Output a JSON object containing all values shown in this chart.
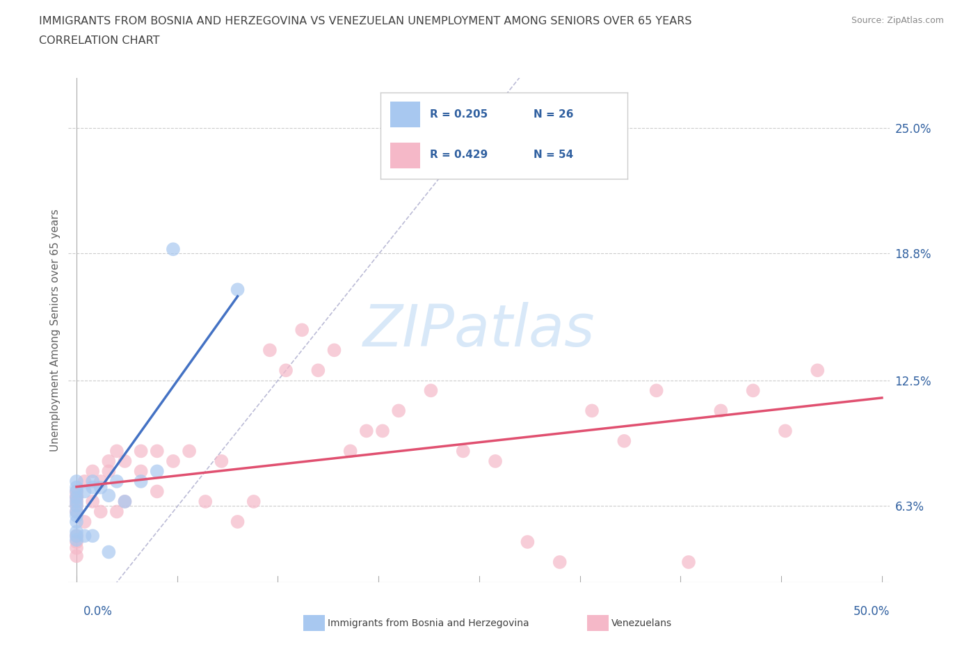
{
  "title_line1": "IMMIGRANTS FROM BOSNIA AND HERZEGOVINA VS VENEZUELAN UNEMPLOYMENT AMONG SENIORS OVER 65 YEARS",
  "title_line2": "CORRELATION CHART",
  "source": "Source: ZipAtlas.com",
  "ylabel": "Unemployment Among Seniors over 65 years",
  "xlim": [
    -0.005,
    0.505
  ],
  "ylim": [
    0.025,
    0.275
  ],
  "y_tick_labels": [
    "6.3%",
    "12.5%",
    "18.8%",
    "25.0%"
  ],
  "y_tick_values": [
    0.063,
    0.125,
    0.188,
    0.25
  ],
  "x_tick_positions": [
    0.0,
    0.0625,
    0.125,
    0.1875,
    0.25,
    0.3125,
    0.375,
    0.4375,
    0.5
  ],
  "bosnia_color": "#a8c8f0",
  "venezuela_color": "#f5b8c8",
  "bosnia_line_color": "#4472c4",
  "venezuela_line_color": "#e05070",
  "diagonal_color": "#aaaacc",
  "watermark_color": "#d8e8f8",
  "legend_rn_color": "#3060a0",
  "bosnia_scatter_x": [
    0.0,
    0.0,
    0.0,
    0.0,
    0.0,
    0.0,
    0.0,
    0.0,
    0.0,
    0.0,
    0.0,
    0.0,
    0.005,
    0.005,
    0.01,
    0.01,
    0.01,
    0.015,
    0.02,
    0.02,
    0.025,
    0.03,
    0.04,
    0.05,
    0.06,
    0.1
  ],
  "bosnia_scatter_y": [
    0.063,
    0.065,
    0.067,
    0.07,
    0.072,
    0.075,
    0.055,
    0.058,
    0.06,
    0.05,
    0.048,
    0.046,
    0.07,
    0.048,
    0.072,
    0.075,
    0.048,
    0.072,
    0.068,
    0.04,
    0.075,
    0.065,
    0.075,
    0.08,
    0.19,
    0.17
  ],
  "venezuela_scatter_x": [
    0.0,
    0.0,
    0.0,
    0.0,
    0.0,
    0.0,
    0.0,
    0.0,
    0.0,
    0.0,
    0.005,
    0.005,
    0.01,
    0.01,
    0.015,
    0.015,
    0.02,
    0.02,
    0.025,
    0.025,
    0.03,
    0.03,
    0.04,
    0.04,
    0.05,
    0.05,
    0.06,
    0.07,
    0.08,
    0.09,
    0.1,
    0.11,
    0.12,
    0.13,
    0.14,
    0.15,
    0.16,
    0.17,
    0.18,
    0.19,
    0.2,
    0.22,
    0.24,
    0.26,
    0.28,
    0.3,
    0.32,
    0.34,
    0.36,
    0.38,
    0.4,
    0.42,
    0.44,
    0.46
  ],
  "venezuela_scatter_y": [
    0.06,
    0.063,
    0.065,
    0.067,
    0.068,
    0.07,
    0.048,
    0.045,
    0.042,
    0.038,
    0.075,
    0.055,
    0.08,
    0.065,
    0.075,
    0.06,
    0.08,
    0.085,
    0.09,
    0.06,
    0.085,
    0.065,
    0.09,
    0.08,
    0.09,
    0.07,
    0.085,
    0.09,
    0.065,
    0.085,
    0.055,
    0.065,
    0.14,
    0.13,
    0.15,
    0.13,
    0.14,
    0.09,
    0.1,
    0.1,
    0.11,
    0.12,
    0.09,
    0.085,
    0.045,
    0.035,
    0.11,
    0.095,
    0.12,
    0.035,
    0.11,
    0.12,
    0.1,
    0.13
  ],
  "background_color": "#ffffff",
  "title_color": "#404040",
  "axis_label_color": "#606060"
}
